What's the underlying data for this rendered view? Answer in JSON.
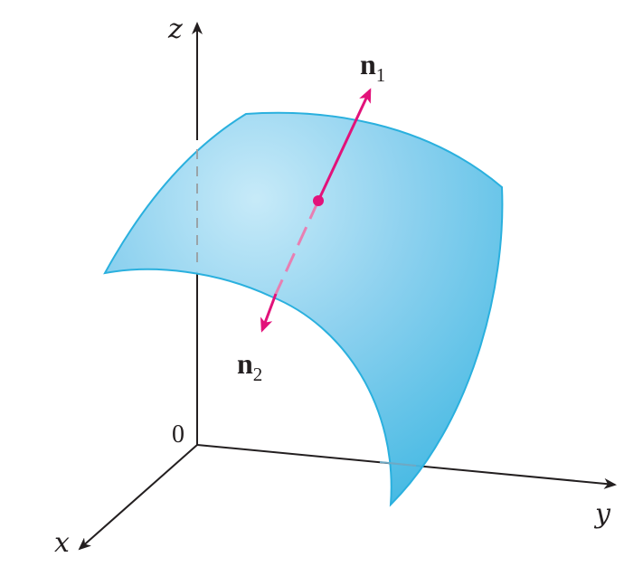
{
  "axes": {
    "z_label": "z",
    "y_label": "y",
    "x_label": "x",
    "origin_label": "0"
  },
  "normals": {
    "n1": {
      "base": "n",
      "sub": "1"
    },
    "n2": {
      "base": "n",
      "sub": "2"
    }
  },
  "colors": {
    "surface_fill": "#7ec8e8",
    "surface_edge": "#2ab0de",
    "vector": "#e2127a",
    "axis": "#231f20",
    "hidden_axis": "#9aa3a8"
  }
}
